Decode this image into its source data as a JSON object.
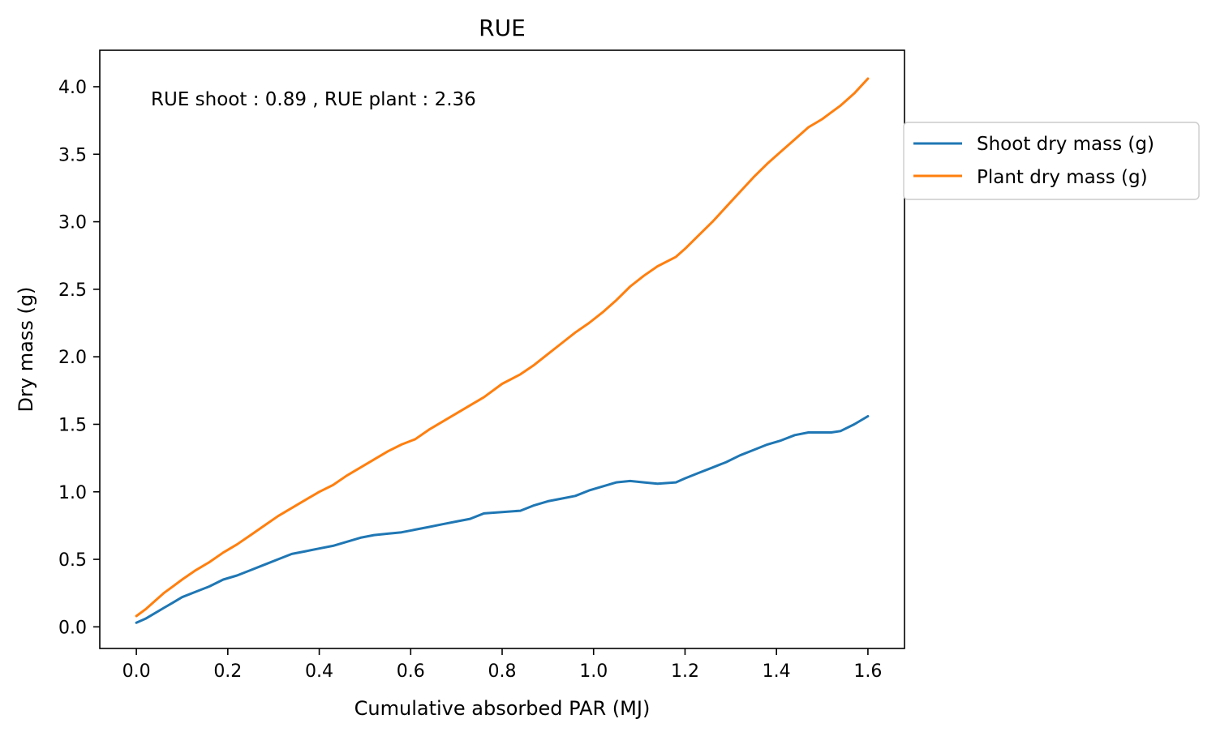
{
  "chart_data": {
    "type": "line",
    "title": "RUE",
    "xlabel": "Cumulative absorbed PAR (MJ)",
    "ylabel": "Dry mass (g)",
    "annotation": "RUE shoot : 0.89 , RUE plant : 2.36",
    "xlim": [
      -0.08,
      1.68
    ],
    "ylim": [
      -0.16,
      4.27
    ],
    "xticks": [
      "0.0",
      "0.2",
      "0.4",
      "0.6",
      "0.8",
      "1.0",
      "1.2",
      "1.4",
      "1.6"
    ],
    "yticks": [
      "0.0",
      "0.5",
      "1.0",
      "1.5",
      "2.0",
      "2.5",
      "3.0",
      "3.5",
      "4.0"
    ],
    "grid": false,
    "legend_position": "outside-right-top",
    "series": [
      {
        "name": "Shoot dry mass (g)",
        "color": "#1f77b4",
        "x": [
          0.0,
          0.02,
          0.04,
          0.06,
          0.08,
          0.1,
          0.13,
          0.16,
          0.19,
          0.22,
          0.25,
          0.28,
          0.31,
          0.34,
          0.37,
          0.4,
          0.43,
          0.46,
          0.49,
          0.52,
          0.55,
          0.58,
          0.61,
          0.64,
          0.67,
          0.7,
          0.73,
          0.76,
          0.8,
          0.84,
          0.87,
          0.9,
          0.93,
          0.96,
          0.99,
          1.02,
          1.05,
          1.08,
          1.11,
          1.14,
          1.18,
          1.2,
          1.23,
          1.26,
          1.29,
          1.32,
          1.35,
          1.38,
          1.41,
          1.44,
          1.47,
          1.5,
          1.52,
          1.54,
          1.57,
          1.6
        ],
        "y": [
          0.03,
          0.06,
          0.1,
          0.14,
          0.18,
          0.22,
          0.26,
          0.3,
          0.35,
          0.38,
          0.42,
          0.46,
          0.5,
          0.54,
          0.56,
          0.58,
          0.6,
          0.63,
          0.66,
          0.68,
          0.69,
          0.7,
          0.72,
          0.74,
          0.76,
          0.78,
          0.8,
          0.84,
          0.85,
          0.86,
          0.9,
          0.93,
          0.95,
          0.97,
          1.01,
          1.04,
          1.07,
          1.08,
          1.07,
          1.06,
          1.07,
          1.1,
          1.14,
          1.18,
          1.22,
          1.27,
          1.31,
          1.35,
          1.38,
          1.42,
          1.44,
          1.44,
          1.44,
          1.45,
          1.5,
          1.56
        ]
      },
      {
        "name": "Plant dry mass (g)",
        "color": "#ff7f0e",
        "x": [
          0.0,
          0.02,
          0.04,
          0.06,
          0.08,
          0.1,
          0.13,
          0.16,
          0.19,
          0.22,
          0.25,
          0.28,
          0.31,
          0.34,
          0.37,
          0.4,
          0.43,
          0.46,
          0.49,
          0.52,
          0.55,
          0.58,
          0.61,
          0.64,
          0.67,
          0.7,
          0.73,
          0.76,
          0.8,
          0.84,
          0.87,
          0.9,
          0.93,
          0.96,
          0.99,
          1.02,
          1.05,
          1.08,
          1.11,
          1.14,
          1.18,
          1.2,
          1.23,
          1.26,
          1.29,
          1.32,
          1.35,
          1.38,
          1.41,
          1.44,
          1.47,
          1.5,
          1.52,
          1.54,
          1.57,
          1.6
        ],
        "y": [
          0.08,
          0.13,
          0.19,
          0.25,
          0.3,
          0.35,
          0.42,
          0.48,
          0.55,
          0.61,
          0.68,
          0.75,
          0.82,
          0.88,
          0.94,
          1.0,
          1.05,
          1.12,
          1.18,
          1.24,
          1.3,
          1.35,
          1.39,
          1.46,
          1.52,
          1.58,
          1.64,
          1.7,
          1.8,
          1.87,
          1.94,
          2.02,
          2.1,
          2.18,
          2.25,
          2.33,
          2.42,
          2.52,
          2.6,
          2.67,
          2.74,
          2.8,
          2.9,
          3.0,
          3.11,
          3.22,
          3.33,
          3.43,
          3.52,
          3.61,
          3.7,
          3.76,
          3.81,
          3.86,
          3.95,
          4.06
        ]
      }
    ]
  }
}
